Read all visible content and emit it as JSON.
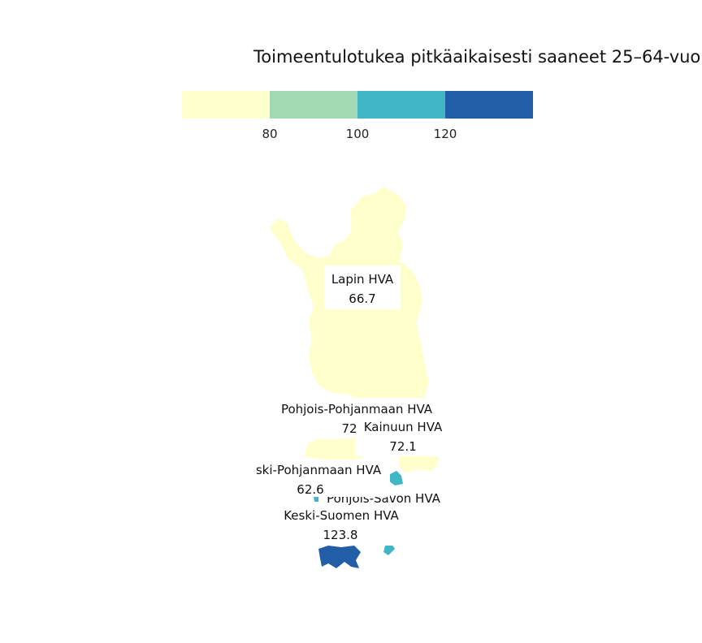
{
  "map": {
    "title": "Toimeentulotukea pitkäaikaisesti saaneet 25–64-vuo",
    "legend": {
      "ticks": [
        "80",
        "100",
        "120"
      ],
      "colors": [
        "#ffffcc",
        "#a1dab4",
        "#41b6c4",
        "#225ea8"
      ]
    },
    "regions": [
      {
        "name": "Lapin HVA",
        "value": "66.7",
        "color": "#ffffcc"
      },
      {
        "name": "Pohjois-Pohjanmaan HVA",
        "value": "72",
        "color": "#ffffcc"
      },
      {
        "name": "Kainuun HVA",
        "value": "72.1",
        "color": "#ffffcc"
      },
      {
        "name": "ski-Pohjanmaan HVA",
        "value": "62.6",
        "color": "#ffffcc"
      },
      {
        "name": "Pohjois-Savon HVA",
        "value": "",
        "color": "#41b6c4"
      },
      {
        "name": "Keski-Suomen HVA",
        "value": "123.8",
        "color": "#225ea8"
      }
    ]
  }
}
